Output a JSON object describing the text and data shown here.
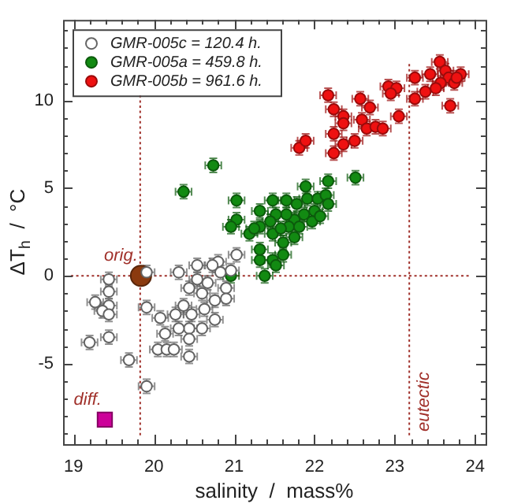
{
  "chart_data": {
    "type": "scatter",
    "xlabel": "salinity  /  mass%",
    "ylabel": "ΔT$_{h}$  /  °C",
    "xlim": [
      18.87,
      24.13
    ],
    "ylim": [
      -9.6,
      14.6
    ],
    "xticks": [
      19,
      {
        "value": 19.2,
        "label": null
      },
      {
        "value": 19.4,
        "label": null
      },
      {
        "value": 19.6,
        "label": null
      },
      {
        "value": 19.8,
        "label": null
      },
      20,
      {
        "value": 20.2,
        "label": null
      },
      {
        "value": 20.4,
        "label": null
      },
      {
        "value": 20.6,
        "label": null
      },
      {
        "value": 20.8,
        "label": null
      },
      21,
      {
        "value": 21.2,
        "label": null
      },
      {
        "value": 21.4,
        "label": null
      },
      {
        "value": 21.6,
        "label": null
      },
      {
        "value": 21.8,
        "label": null
      },
      22,
      {
        "value": 22.2,
        "label": null
      },
      {
        "value": 22.4,
        "label": null
      },
      {
        "value": 22.6,
        "label": null
      },
      {
        "value": 22.8,
        "label": null
      },
      23,
      {
        "value": 23.2,
        "label": null
      },
      {
        "value": 23.4,
        "label": null
      },
      {
        "value": 23.6,
        "label": null
      },
      {
        "value": 23.8,
        "label": null
      },
      24
    ],
    "yticks": [
      {
        "value": -9,
        "label": null
      },
      {
        "value": -8,
        "label": null
      },
      {
        "value": -7,
        "label": null
      },
      {
        "value": -6,
        "label": null
      },
      -5,
      {
        "value": -4,
        "label": null
      },
      {
        "value": -3,
        "label": null
      },
      {
        "value": -2,
        "label": null
      },
      {
        "value": -1,
        "label": null
      },
      0,
      {
        "value": 1,
        "label": null
      },
      {
        "value": 2,
        "label": null
      },
      {
        "value": 3,
        "label": null
      },
      {
        "value": 4,
        "label": null
      },
      5,
      {
        "value": 6,
        "label": null
      },
      {
        "value": 7,
        "label": null
      },
      {
        "value": 8,
        "label": null
      },
      {
        "value": 9,
        "label": null
      },
      10,
      {
        "value": 11,
        "label": null
      },
      {
        "value": 12,
        "label": null
      },
      {
        "value": 13,
        "label": null
      },
      {
        "value": 14,
        "label": null
      }
    ],
    "grid": false,
    "legend": "top left",
    "marker": "circle",
    "ref_lines": [
      {
        "axis": "x",
        "value": 19.83,
        "color": "#a0302a",
        "line_style": "dotted"
      },
      {
        "axis": "x",
        "value": 23.18,
        "label": "eutectic",
        "color": "#a0302a",
        "line_style": "dotted"
      },
      {
        "axis": "y",
        "value": 0,
        "color": "#a0302a",
        "line_style": "dotted"
      }
    ],
    "annotations": [
      {
        "text": "orig.",
        "x": 19.84,
        "y": 0
      },
      {
        "text": "diff.",
        "x": 19.39,
        "y": -8.2
      }
    ],
    "series": [
      {
        "name": "GMR-005c = 120.4 h.",
        "color": "#ffffff",
        "x": [
          19.91,
          19.44,
          19.44,
          19.27,
          19.44,
          19.36,
          19.44,
          19.2,
          19.44,
          19.69,
          19.91,
          19.91,
          20.08,
          20.31,
          20.54,
          20.54,
          20.8,
          21.03,
          20.83,
          20.44,
          20.6,
          20.9,
          20.9,
          20.76,
          20.37,
          20.27,
          20.47,
          20.63,
          20.76,
          20.6,
          20.44,
          20.31,
          20.14,
          20.44,
          20.05,
          20.16,
          20.25,
          20.44,
          20.67,
          20.73,
          20.96
        ],
        "values": [
          0.2,
          -0.2,
          -0.9,
          -1.5,
          -1.7,
          -2.0,
          -2.2,
          -3.8,
          -3.5,
          -4.8,
          -6.3,
          -1.8,
          -2.4,
          0.2,
          0.6,
          -0.2,
          0.8,
          1.2,
          0.2,
          -0.7,
          -1.0,
          -0.7,
          -1.3,
          -1.4,
          -1.7,
          -2.2,
          -2.2,
          -1.9,
          -2.5,
          -3.0,
          -3.0,
          -3.0,
          -3.3,
          -3.6,
          -4.2,
          -4.2,
          -4.2,
          -4.6,
          -0.4,
          0.6,
          0.3
        ],
        "errors": [
          0.4,
          0.4,
          0.4,
          0.4,
          0.4,
          0.4,
          0.4,
          0.4,
          0.4,
          0.4,
          0.4,
          0.4,
          0.4,
          0.4,
          0.4,
          0.4,
          0.4,
          0.4,
          0.4,
          0.4,
          0.4,
          0.4,
          0.4,
          0.4,
          0.4,
          0.4,
          0.4,
          0.4,
          0.4,
          0.4,
          0.4,
          0.4,
          0.4,
          0.4,
          0.4,
          0.4,
          0.4,
          0.4,
          0.4,
          0.4,
          0.4
        ],
        "xerrors": [
          0.1,
          0.1,
          0.1,
          0.1,
          0.1,
          0.1,
          0.1,
          0.1,
          0.1,
          0.1,
          0.1,
          0.1,
          0.1,
          0.1,
          0.1,
          0.1,
          0.1,
          0.1,
          0.1,
          0.1,
          0.1,
          0.1,
          0.1,
          0.1,
          0.1,
          0.1,
          0.1,
          0.1,
          0.1,
          0.1,
          0.1,
          0.1,
          0.1,
          0.1,
          0.1,
          0.1,
          0.1,
          0.1,
          0.1,
          0.1,
          0.1
        ]
      },
      {
        "name": "GMR-005a = 459.8 h.",
        "color": "#128a12",
        "x": [
          20.74,
          20.37,
          21.03,
          21.03,
          20.96,
          21.19,
          20.96,
          21.38,
          21.32,
          21.32,
          21.48,
          21.52,
          21.61,
          21.61,
          21.48,
          21.32,
          21.32,
          21.48,
          21.65,
          21.78,
          21.91,
          22.04,
          22.14,
          22.17,
          22.0,
          21.87,
          21.75,
          21.65,
          21.52,
          21.68,
          21.81,
          21.58,
          21.45,
          21.25,
          21.75,
          21.97,
          22.07,
          22.51,
          22.17,
          21.89
        ],
        "values": [
          6.3,
          4.8,
          4.3,
          3.2,
          2.8,
          2.4,
          0.0,
          0.0,
          0.9,
          1.5,
          0.9,
          0.6,
          1.2,
          1.9,
          2.4,
          3.7,
          2.8,
          4.3,
          4.3,
          4.1,
          4.4,
          4.4,
          4.6,
          4.1,
          3.7,
          3.5,
          3.2,
          3.5,
          3.5,
          2.8,
          2.8,
          2.7,
          3.1,
          2.7,
          2.2,
          3.1,
          3.4,
          5.6,
          5.4,
          5.1
        ],
        "errors": [
          0.4,
          0.4,
          0.4,
          0.4,
          0.4,
          0.4,
          0.4,
          0.4,
          0.4,
          0.4,
          0.4,
          0.4,
          0.4,
          0.4,
          0.4,
          0.4,
          0.4,
          0.4,
          0.4,
          0.4,
          0.4,
          0.4,
          0.4,
          0.4,
          0.4,
          0.4,
          0.4,
          0.4,
          0.4,
          0.4,
          0.4,
          0.4,
          0.4,
          0.4,
          0.4,
          0.4,
          0.4,
          0.4,
          0.4,
          0.4
        ],
        "xerrors": [
          0.1,
          0.1,
          0.1,
          0.1,
          0.1,
          0.1,
          0.1,
          0.1,
          0.1,
          0.1,
          0.1,
          0.1,
          0.1,
          0.1,
          0.1,
          0.1,
          0.1,
          0.1,
          0.1,
          0.1,
          0.1,
          0.1,
          0.1,
          0.1,
          0.1,
          0.1,
          0.1,
          0.1,
          0.1,
          0.1,
          0.1,
          0.1,
          0.1,
          0.1,
          0.1,
          0.1,
          0.1,
          0.1,
          0.1,
          0.1
        ]
      },
      {
        "name": "GMR-005b = 961.6 h.",
        "color": "#ee1111",
        "x": [
          21.81,
          21.89,
          22.24,
          22.24,
          22.17,
          22.24,
          22.36,
          22.36,
          22.36,
          22.5,
          22.57,
          22.69,
          22.59,
          22.65,
          22.76,
          22.85,
          22.92,
          23.02,
          22.95,
          23.05,
          23.25,
          23.25,
          23.38,
          23.44,
          23.56,
          23.63,
          23.67,
          23.74,
          23.82,
          23.57,
          23.51,
          23.69,
          23.77
        ],
        "values": [
          7.3,
          7.7,
          8.1,
          7.0,
          10.3,
          9.5,
          9.1,
          8.7,
          7.5,
          7.7,
          10.1,
          9.6,
          8.9,
          8.4,
          8.5,
          8.4,
          10.8,
          10.7,
          10.4,
          9.1,
          11.3,
          10.1,
          10.5,
          11.5,
          12.2,
          11.7,
          11.3,
          11.0,
          11.5,
          11.0,
          10.7,
          9.7,
          11.3
        ],
        "errors": [
          0.4,
          0.4,
          0.4,
          0.4,
          0.4,
          0.4,
          0.4,
          0.4,
          0.4,
          0.4,
          0.4,
          0.4,
          0.4,
          0.4,
          0.4,
          0.4,
          0.4,
          0.4,
          0.4,
          0.4,
          0.4,
          0.4,
          0.4,
          0.4,
          0.4,
          0.4,
          0.4,
          0.4,
          0.4,
          0.4,
          0.4,
          0.4,
          0.4
        ],
        "xerrors": [
          0.1,
          0.1,
          0.1,
          0.1,
          0.1,
          0.1,
          0.1,
          0.1,
          0.1,
          0.1,
          0.1,
          0.1,
          0.1,
          0.1,
          0.1,
          0.1,
          0.1,
          0.1,
          0.1,
          0.1,
          0.1,
          0.1,
          0.1,
          0.1,
          0.1,
          0.1,
          0.1,
          0.1,
          0.1,
          0.1,
          0.1,
          0.1,
          0.1
        ]
      },
      {
        "color": "#8b3a0f",
        "x": [
          19.84
        ],
        "values": [
          0
        ]
      },
      {
        "color": "#cc0099",
        "marker": "square",
        "x": [
          19.39
        ],
        "values": [
          -8.2
        ]
      }
    ]
  }
}
